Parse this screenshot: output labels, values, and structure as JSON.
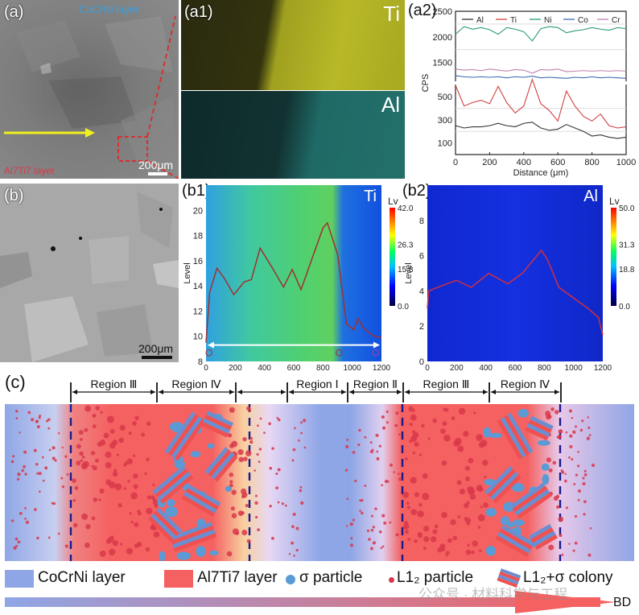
{
  "figure": {
    "panel_a": {
      "label": "(a)",
      "top_layer_label": "CoCrNi layer",
      "bottom_layer_label": "Al7Ti7 layer",
      "scale_bar": "200μm",
      "colors": {
        "top_label": "#3aa0e0",
        "bottom_label": "#d8384a",
        "arrow": "#f0f020",
        "roi_box": "#e03030"
      }
    },
    "panel_a1": {
      "label": "(a1)",
      "maps": [
        {
          "element": "Ti",
          "color": "#d8d820"
        },
        {
          "element": "Al",
          "color": "#30c8c0"
        }
      ]
    },
    "panel_b": {
      "label": "(b)",
      "scale_bar": "200μm"
    },
    "panel_b1": {
      "label": "(b1)",
      "element": "Ti",
      "colorbar_title": "Lv",
      "colorbar_ticks": [
        "42.0",
        "26.3",
        "15.8",
        "0.0"
      ],
      "markers": [
        "O",
        "O",
        "O"
      ]
    },
    "panel_b2": {
      "label": "(b2)",
      "element": "Al",
      "colorbar_title": "Lv",
      "colorbar_ticks": [
        "50.0",
        "31.3",
        "18.8",
        "0.0"
      ]
    },
    "panel_c": {
      "label": "(c)",
      "regions": [
        "Region Ⅲ",
        "Region Ⅳ",
        "",
        "Region Ⅰ",
        "Region Ⅱ",
        "Region Ⅲ",
        "Region Ⅳ"
      ],
      "legend": [
        {
          "name": "CoCrNi layer",
          "color": "#8fa6e6"
        },
        {
          "name": "Al7Ti7 layer",
          "color": "#f56060"
        },
        {
          "name": "σ particle",
          "color": "#5b9bd5"
        },
        {
          "name": "L1₂ particle",
          "color": "#d8384a"
        },
        {
          "name": "L1₂+σ colony",
          "color": "#6a8fd0"
        }
      ],
      "build_direction": "BD",
      "watermark": "公众号 · 材料科学与工程"
    }
  },
  "chart_data": [
    {
      "type": "line",
      "id": "a2",
      "title": "(a2)",
      "xlabel": "Distance (μm)",
      "ylabel": "CPS",
      "xlim": [
        0,
        1000
      ],
      "x_ticks": [
        "0",
        "200",
        "400",
        "600",
        "800",
        "1000"
      ],
      "y_ticks": [
        "100",
        "300",
        "500",
        "1500",
        "2000",
        "2500"
      ],
      "axis_break": true,
      "legend": [
        "Al",
        "Ti",
        "Ni",
        "Co",
        "Cr"
      ],
      "legend_position": "top",
      "x": [
        0,
        50,
        100,
        150,
        200,
        250,
        300,
        350,
        400,
        450,
        500,
        550,
        600,
        650,
        700,
        750,
        800,
        850,
        900,
        950,
        1000
      ],
      "series": [
        {
          "name": "Al",
          "color": "#333333",
          "values": [
            250,
            230,
            240,
            240,
            250,
            270,
            250,
            240,
            270,
            280,
            230,
            210,
            220,
            260,
            230,
            200,
            160,
            170,
            150,
            140,
            150
          ]
        },
        {
          "name": "Ti",
          "color": "#d04040",
          "values": [
            600,
            420,
            450,
            470,
            440,
            590,
            450,
            360,
            420,
            650,
            440,
            380,
            290,
            550,
            420,
            330,
            290,
            350,
            250,
            230,
            240
          ]
        },
        {
          "name": "Ni",
          "color": "#2a9a7a",
          "values": [
            2050,
            2200,
            2150,
            2180,
            2140,
            2050,
            2180,
            2150,
            2100,
            1920,
            2160,
            2200,
            2180,
            2080,
            2120,
            2140,
            2180,
            2150,
            2130,
            2180,
            2160
          ]
        },
        {
          "name": "Co",
          "color": "#3a6ab0",
          "values": [
            1240,
            1220,
            1210,
            1220,
            1210,
            1220,
            1200,
            1220,
            1210,
            1230,
            1200,
            1210,
            1200,
            1190,
            1210,
            1200,
            1220,
            1200,
            1210,
            1200,
            1190
          ]
        },
        {
          "name": "Cr",
          "color": "#c080b0",
          "values": [
            1370,
            1350,
            1360,
            1340,
            1370,
            1350,
            1330,
            1360,
            1350,
            1290,
            1360,
            1350,
            1370,
            1320,
            1330,
            1340,
            1330,
            1340,
            1330,
            1340,
            1330
          ]
        }
      ]
    },
    {
      "type": "line",
      "id": "b1",
      "xlabel": "Distance, μm",
      "ylabel": "Level",
      "xlim": [
        0,
        1200
      ],
      "ylim": [
        8,
        22
      ],
      "x_ticks": [
        "0",
        "200",
        "400",
        "600",
        "800",
        "1000",
        "1200"
      ],
      "y_ticks": [
        "8",
        "10",
        "12",
        "14",
        "16",
        "18",
        "20"
      ],
      "x": [
        0,
        25,
        75,
        125,
        190,
        260,
        310,
        370,
        450,
        530,
        590,
        650,
        720,
        800,
        830,
        900,
        960,
        1010,
        1040,
        1080,
        1150,
        1200
      ],
      "series": [
        {
          "name": "Ti level",
          "color": "#a03030",
          "values": [
            9.5,
            13.5,
            15.4,
            14.6,
            13.3,
            14.3,
            14.5,
            17.0,
            15.5,
            13.9,
            15.3,
            13.7,
            16.0,
            18.6,
            19.0,
            16.5,
            11.0,
            10.5,
            11.4,
            10.6,
            10.0,
            9.9
          ]
        }
      ]
    },
    {
      "type": "line",
      "id": "b2",
      "xlabel": "Distance, μm",
      "ylabel": "Level",
      "xlim": [
        0,
        1200
      ],
      "ylim": [
        0,
        10
      ],
      "x_ticks": [
        "0",
        "200",
        "400",
        "600",
        "800",
        "1000",
        "1200"
      ],
      "y_ticks": [
        "0",
        "2",
        "4",
        "6",
        "8"
      ],
      "x": [
        0,
        10,
        100,
        200,
        300,
        420,
        550,
        650,
        700,
        780,
        820,
        900,
        1000,
        1100,
        1170,
        1200
      ],
      "series": [
        {
          "name": "Al level",
          "color": "#d03040",
          "values": [
            3.0,
            4.0,
            4.3,
            4.6,
            4.2,
            5.0,
            4.4,
            5.0,
            5.5,
            6.3,
            5.8,
            4.2,
            3.6,
            3.0,
            2.5,
            1.5
          ]
        }
      ]
    }
  ]
}
